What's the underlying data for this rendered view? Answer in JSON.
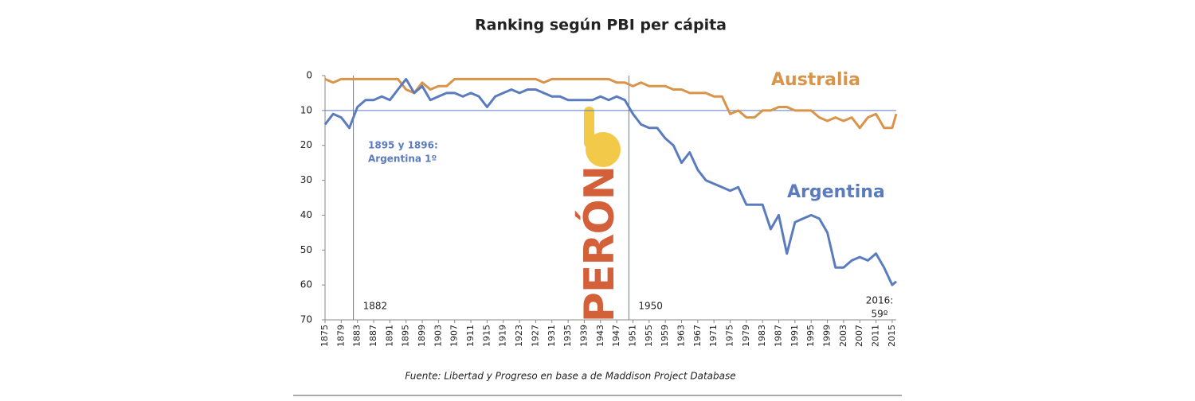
{
  "chart_data": {
    "type": "line",
    "title": "Ranking según PBI per cápita",
    "source": "Fuente: Libertad y Progreso en  base a de Maddison Project Database",
    "x": [
      1875,
      1877,
      1879,
      1881,
      1883,
      1885,
      1887,
      1889,
      1891,
      1893,
      1895,
      1897,
      1899,
      1901,
      1903,
      1905,
      1907,
      1909,
      1911,
      1913,
      1915,
      1917,
      1919,
      1921,
      1923,
      1925,
      1927,
      1929,
      1931,
      1933,
      1935,
      1937,
      1939,
      1941,
      1943,
      1945,
      1947,
      1949,
      1951,
      1953,
      1955,
      1957,
      1959,
      1961,
      1963,
      1965,
      1967,
      1969,
      1971,
      1973,
      1975,
      1977,
      1979,
      1981,
      1983,
      1985,
      1987,
      1989,
      1991,
      1993,
      1995,
      1997,
      1999,
      2001,
      2003,
      2005,
      2007,
      2009,
      2011,
      2013,
      2015,
      2016
    ],
    "series": [
      {
        "name": "Australia",
        "color": "#d9944a",
        "values": [
          1,
          2,
          1,
          1,
          1,
          1,
          1,
          1,
          1,
          1,
          4,
          5,
          2,
          4,
          3,
          3,
          1,
          1,
          1,
          1,
          1,
          1,
          1,
          1,
          1,
          1,
          1,
          2,
          1,
          1,
          1,
          1,
          1,
          1,
          1,
          1,
          2,
          2,
          3,
          2,
          3,
          3,
          3,
          4,
          4,
          5,
          5,
          5,
          6,
          6,
          11,
          10,
          12,
          12,
          10,
          10,
          9,
          9,
          10,
          10,
          10,
          12,
          13,
          12,
          13,
          12,
          15,
          12,
          11,
          15,
          15,
          11
        ]
      },
      {
        "name": "Argentina",
        "color": "#5b7bbf",
        "values": [
          14,
          11,
          12,
          15,
          9,
          7,
          7,
          6,
          7,
          4,
          1,
          5,
          3,
          7,
          6,
          5,
          5,
          6,
          5,
          6,
          9,
          6,
          5,
          4,
          5,
          4,
          4,
          5,
          6,
          6,
          7,
          7,
          7,
          7,
          6,
          7,
          6,
          7,
          11,
          14,
          15,
          15,
          18,
          20,
          25,
          22,
          27,
          30,
          31,
          32,
          33,
          32,
          37,
          37,
          37,
          44,
          40,
          51,
          42,
          41,
          40,
          41,
          45,
          55,
          55,
          53,
          52,
          53,
          51,
          55,
          60,
          59
        ]
      }
    ],
    "xlim": [
      1875,
      2016
    ],
    "xticks": [
      1875,
      1879,
      1883,
      1887,
      1891,
      1895,
      1899,
      1903,
      1907,
      1911,
      1915,
      1919,
      1923,
      1927,
      1931,
      1935,
      1939,
      1943,
      1947,
      1951,
      1955,
      1959,
      1963,
      1967,
      1971,
      1975,
      1979,
      1983,
      1987,
      1991,
      1995,
      1999,
      2003,
      2007,
      2011,
      2015
    ],
    "ylim": [
      0,
      70
    ],
    "yticks": [
      0,
      10,
      20,
      30,
      40,
      50,
      60,
      70
    ],
    "y_inverted": true,
    "vlines": [
      1882,
      1950
    ],
    "hline": 10,
    "note_1895": [
      "1895 y 1896:",
      "Argentina 1º"
    ],
    "note_2016": [
      "2016:",
      "59º"
    ],
    "leader": "PERÓN",
    "leader_color": "#d4603a"
  }
}
